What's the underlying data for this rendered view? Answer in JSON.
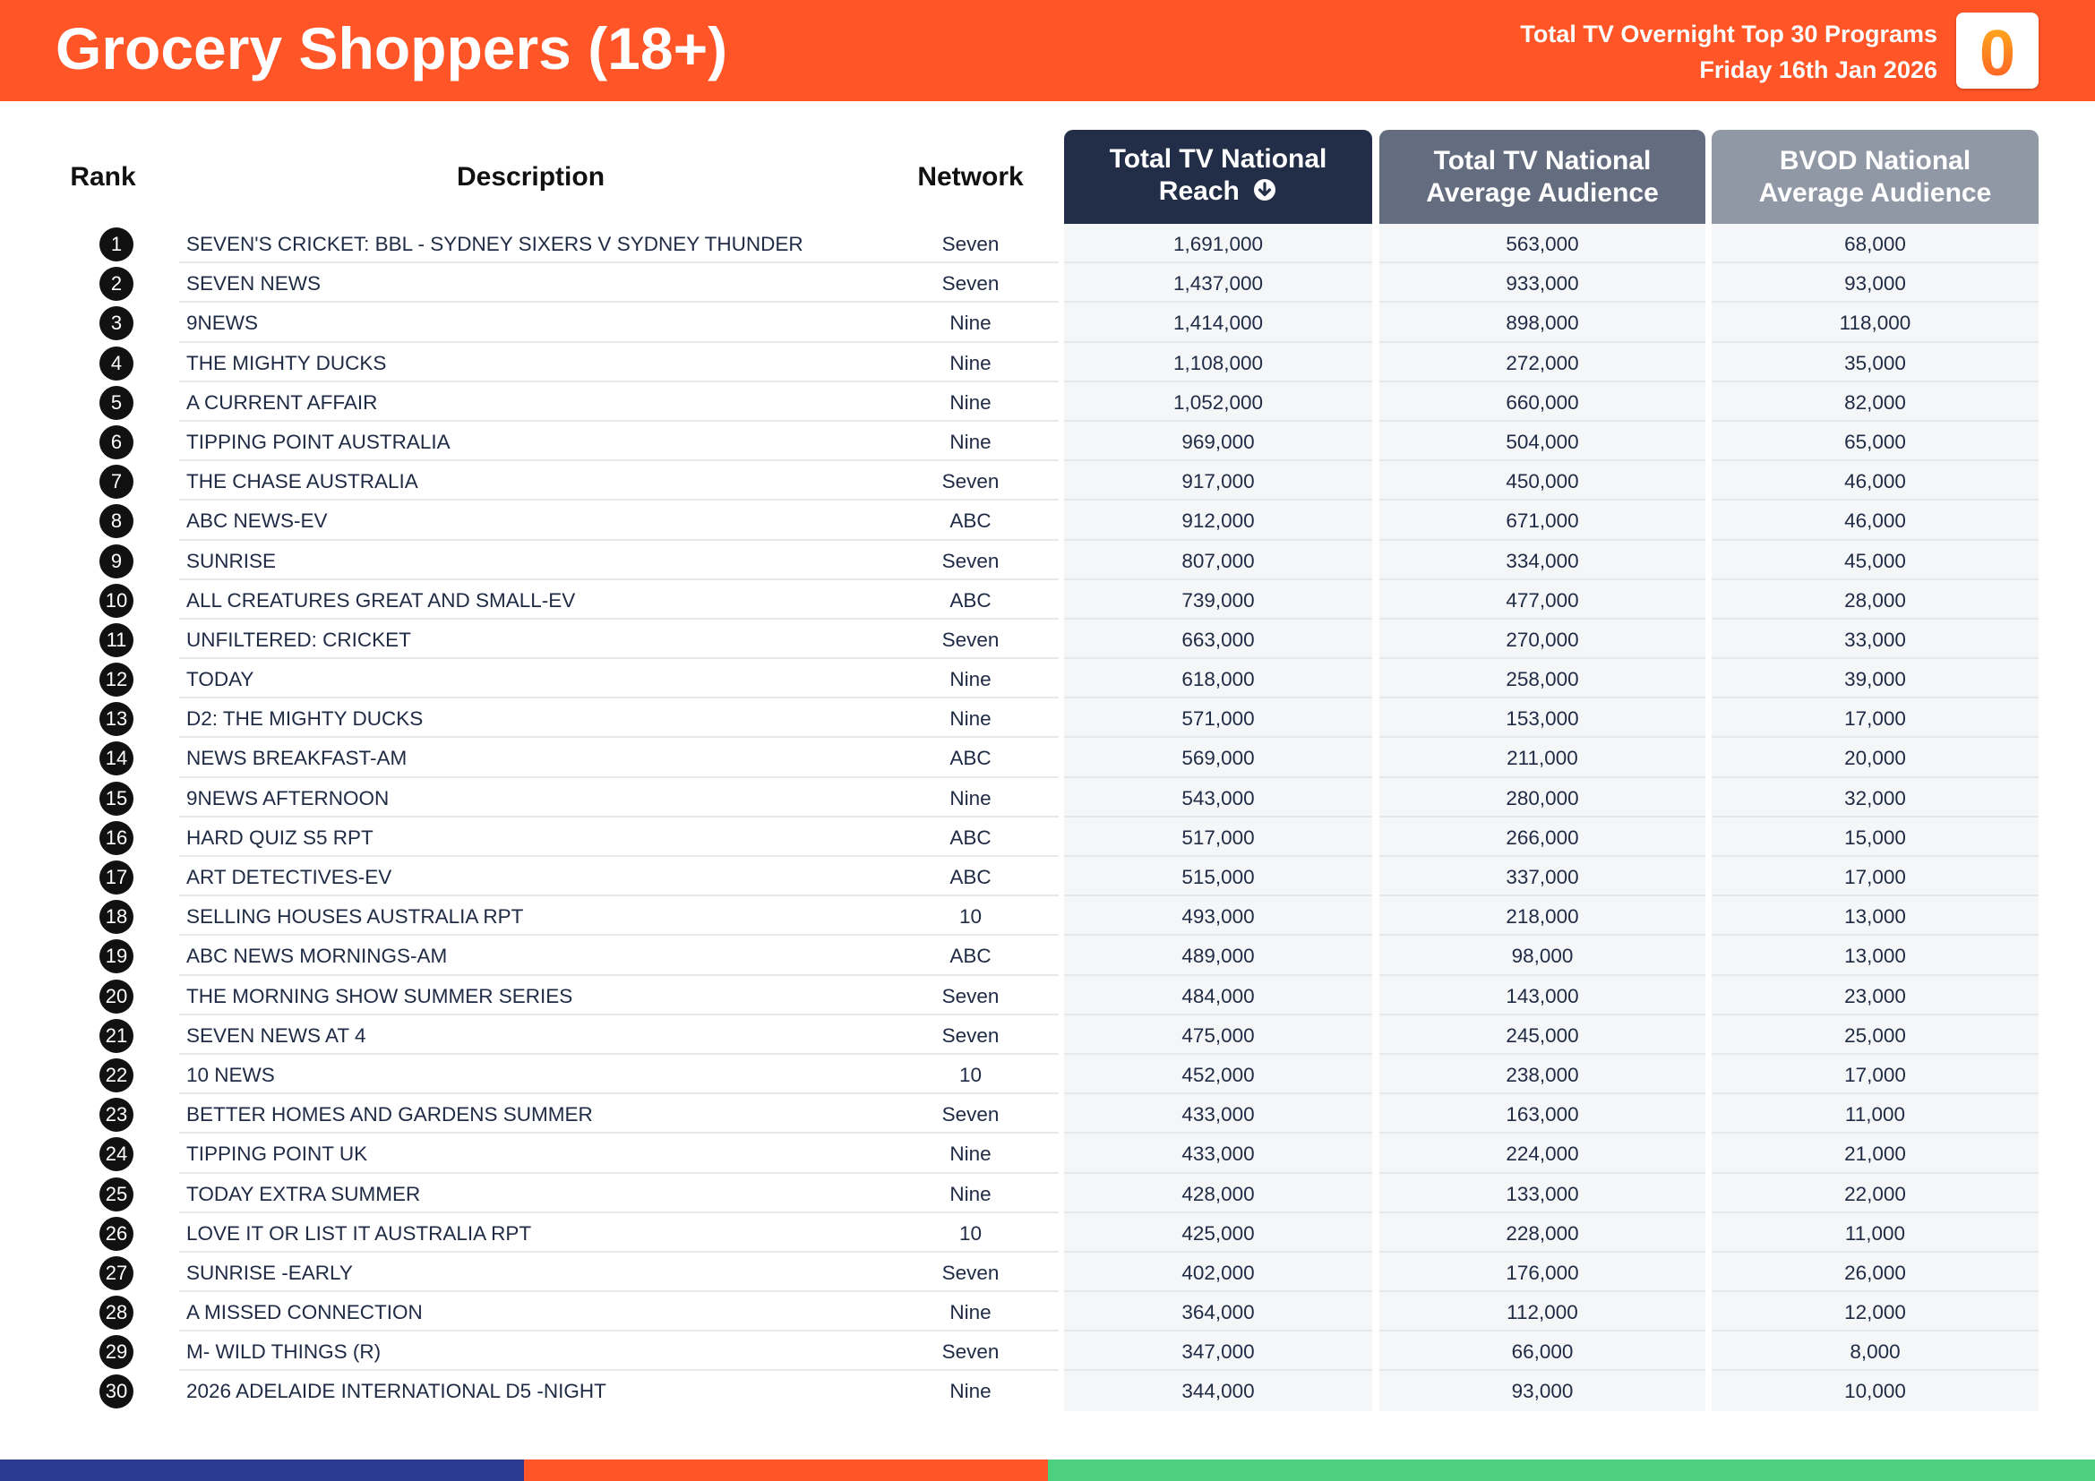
{
  "header": {
    "title": "Grocery Shoppers (18+)",
    "subtitle_line1": "Total TV Overnight Top 30 Programs",
    "subtitle_line2": "Friday 16th Jan 2026",
    "logo_text": "0",
    "bar_color": "#ff5527"
  },
  "columns": {
    "rank": "Rank",
    "description": "Description",
    "network": "Network",
    "reach_line1": "Total TV National",
    "reach_line2": "Reach",
    "avg_line1": "Total TV National",
    "avg_line2": "Average Audience",
    "bvod_line1": "BVOD National",
    "bvod_line2": "Average Audience",
    "reach_color": "#222d47",
    "avg_color": "#646d7f",
    "bvod_color": "#9097a5",
    "sort_icon": "sort-descending-icon"
  },
  "rows": [
    {
      "rank": "1",
      "description": "SEVEN'S CRICKET: BBL - SYDNEY SIXERS V SYDNEY THUNDER",
      "network": "Seven",
      "reach": "1,691,000",
      "avg": "563,000",
      "bvod": "68,000"
    },
    {
      "rank": "2",
      "description": "SEVEN NEWS",
      "network": "Seven",
      "reach": "1,437,000",
      "avg": "933,000",
      "bvod": "93,000"
    },
    {
      "rank": "3",
      "description": "9NEWS",
      "network": "Nine",
      "reach": "1,414,000",
      "avg": "898,000",
      "bvod": "118,000"
    },
    {
      "rank": "4",
      "description": "THE MIGHTY DUCKS",
      "network": "Nine",
      "reach": "1,108,000",
      "avg": "272,000",
      "bvod": "35,000"
    },
    {
      "rank": "5",
      "description": "A CURRENT AFFAIR",
      "network": "Nine",
      "reach": "1,052,000",
      "avg": "660,000",
      "bvod": "82,000"
    },
    {
      "rank": "6",
      "description": "TIPPING POINT AUSTRALIA",
      "network": "Nine",
      "reach": "969,000",
      "avg": "504,000",
      "bvod": "65,000"
    },
    {
      "rank": "7",
      "description": "THE CHASE AUSTRALIA",
      "network": "Seven",
      "reach": "917,000",
      "avg": "450,000",
      "bvod": "46,000"
    },
    {
      "rank": "8",
      "description": "ABC NEWS-EV",
      "network": "ABC",
      "reach": "912,000",
      "avg": "671,000",
      "bvod": "46,000"
    },
    {
      "rank": "9",
      "description": "SUNRISE",
      "network": "Seven",
      "reach": "807,000",
      "avg": "334,000",
      "bvod": "45,000"
    },
    {
      "rank": "10",
      "description": "ALL CREATURES GREAT AND SMALL-EV",
      "network": "ABC",
      "reach": "739,000",
      "avg": "477,000",
      "bvod": "28,000"
    },
    {
      "rank": "11",
      "description": "UNFILTERED: CRICKET",
      "network": "Seven",
      "reach": "663,000",
      "avg": "270,000",
      "bvod": "33,000"
    },
    {
      "rank": "12",
      "description": "TODAY",
      "network": "Nine",
      "reach": "618,000",
      "avg": "258,000",
      "bvod": "39,000"
    },
    {
      "rank": "13",
      "description": "D2: THE MIGHTY DUCKS",
      "network": "Nine",
      "reach": "571,000",
      "avg": "153,000",
      "bvod": "17,000"
    },
    {
      "rank": "14",
      "description": "NEWS BREAKFAST-AM",
      "network": "ABC",
      "reach": "569,000",
      "avg": "211,000",
      "bvod": "20,000"
    },
    {
      "rank": "15",
      "description": "9NEWS AFTERNOON",
      "network": "Nine",
      "reach": "543,000",
      "avg": "280,000",
      "bvod": "32,000"
    },
    {
      "rank": "16",
      "description": "HARD QUIZ S5 RPT",
      "network": "ABC",
      "reach": "517,000",
      "avg": "266,000",
      "bvod": "15,000"
    },
    {
      "rank": "17",
      "description": "ART DETECTIVES-EV",
      "network": "ABC",
      "reach": "515,000",
      "avg": "337,000",
      "bvod": "17,000"
    },
    {
      "rank": "18",
      "description": "SELLING HOUSES AUSTRALIA RPT",
      "network": "10",
      "reach": "493,000",
      "avg": "218,000",
      "bvod": "13,000"
    },
    {
      "rank": "19",
      "description": "ABC NEWS MORNINGS-AM",
      "network": "ABC",
      "reach": "489,000",
      "avg": "98,000",
      "bvod": "13,000"
    },
    {
      "rank": "20",
      "description": "THE MORNING SHOW SUMMER SERIES",
      "network": "Seven",
      "reach": "484,000",
      "avg": "143,000",
      "bvod": "23,000"
    },
    {
      "rank": "21",
      "description": "SEVEN NEWS AT 4",
      "network": "Seven",
      "reach": "475,000",
      "avg": "245,000",
      "bvod": "25,000"
    },
    {
      "rank": "22",
      "description": "10 NEWS",
      "network": "10",
      "reach": "452,000",
      "avg": "238,000",
      "bvod": "17,000"
    },
    {
      "rank": "23",
      "description": "BETTER HOMES AND GARDENS SUMMER",
      "network": "Seven",
      "reach": "433,000",
      "avg": "163,000",
      "bvod": "11,000"
    },
    {
      "rank": "24",
      "description": "TIPPING POINT UK",
      "network": "Nine",
      "reach": "433,000",
      "avg": "224,000",
      "bvod": "21,000"
    },
    {
      "rank": "25",
      "description": "TODAY EXTRA SUMMER",
      "network": "Nine",
      "reach": "428,000",
      "avg": "133,000",
      "bvod": "22,000"
    },
    {
      "rank": "26",
      "description": "LOVE IT OR LIST IT AUSTRALIA RPT",
      "network": "10",
      "reach": "425,000",
      "avg": "228,000",
      "bvod": "11,000"
    },
    {
      "rank": "27",
      "description": "SUNRISE -EARLY",
      "network": "Seven",
      "reach": "402,000",
      "avg": "176,000",
      "bvod": "26,000"
    },
    {
      "rank": "28",
      "description": "A MISSED CONNECTION",
      "network": "Nine",
      "reach": "364,000",
      "avg": "112,000",
      "bvod": "12,000"
    },
    {
      "rank": "29",
      "description": "M- WILD THINGS (R)",
      "network": "Seven",
      "reach": "347,000",
      "avg": "66,000",
      "bvod": "8,000"
    },
    {
      "rank": "30",
      "description": "2026 ADELAIDE INTERNATIONAL D5 -NIGHT",
      "network": "Nine",
      "reach": "344,000",
      "avg": "93,000",
      "bvod": "10,000"
    }
  ],
  "footer": {
    "stripe_colors": [
      "#2b3990",
      "#ff5527",
      "#4ccf7f"
    ]
  }
}
